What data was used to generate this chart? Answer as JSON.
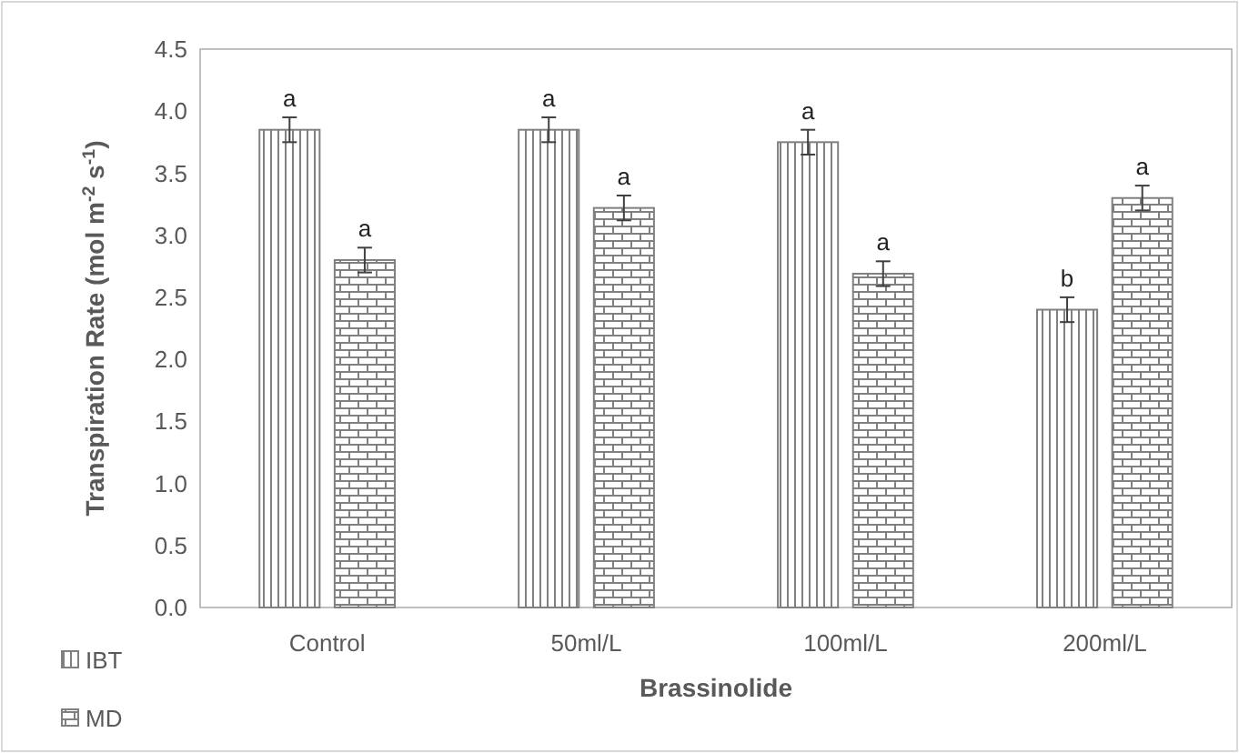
{
  "chart_data": {
    "type": "bar",
    "xlabel": "Brassinolide",
    "ylabel": "Transpiration Rate (mol m$^{-2}$ s$^{-1}$)",
    "categories": [
      "Control",
      "50ml/L",
      "100ml/L",
      "200ml/L"
    ],
    "series": [
      {
        "name": "IBT",
        "color": "#808080",
        "values": [
          3.85,
          3.85,
          3.75,
          2.4
        ],
        "errors": [
          0.1,
          0.1,
          0.1,
          0.1
        ],
        "value_labels": [
          "a",
          "a",
          "a",
          "b"
        ]
      },
      {
        "name": "MD",
        "color": "#808080",
        "values": [
          2.8,
          3.22,
          2.69,
          3.3
        ],
        "errors": [
          0.1,
          0.1,
          0.1,
          0.1
        ],
        "value_labels": [
          "a",
          "a",
          "a",
          "a"
        ]
      }
    ],
    "ylim": [
      0,
      4.5
    ],
    "yticks": [
      {
        "value": 0,
        "label": "0.0"
      },
      {
        "value": 0.5,
        "label": "0.5"
      },
      {
        "value": 1,
        "label": "1.0"
      },
      {
        "value": 1.5,
        "label": "1.5"
      },
      {
        "value": 2,
        "label": "2.0"
      },
      {
        "value": 2.5,
        "label": "2.5"
      },
      {
        "value": 3,
        "label": "3.0"
      },
      {
        "value": 3.5,
        "label": "3.5"
      },
      {
        "value": 4,
        "label": "4.0"
      },
      {
        "value": 4.5,
        "label": "4.5"
      }
    ],
    "grid": false,
    "legend": "bottom left"
  }
}
